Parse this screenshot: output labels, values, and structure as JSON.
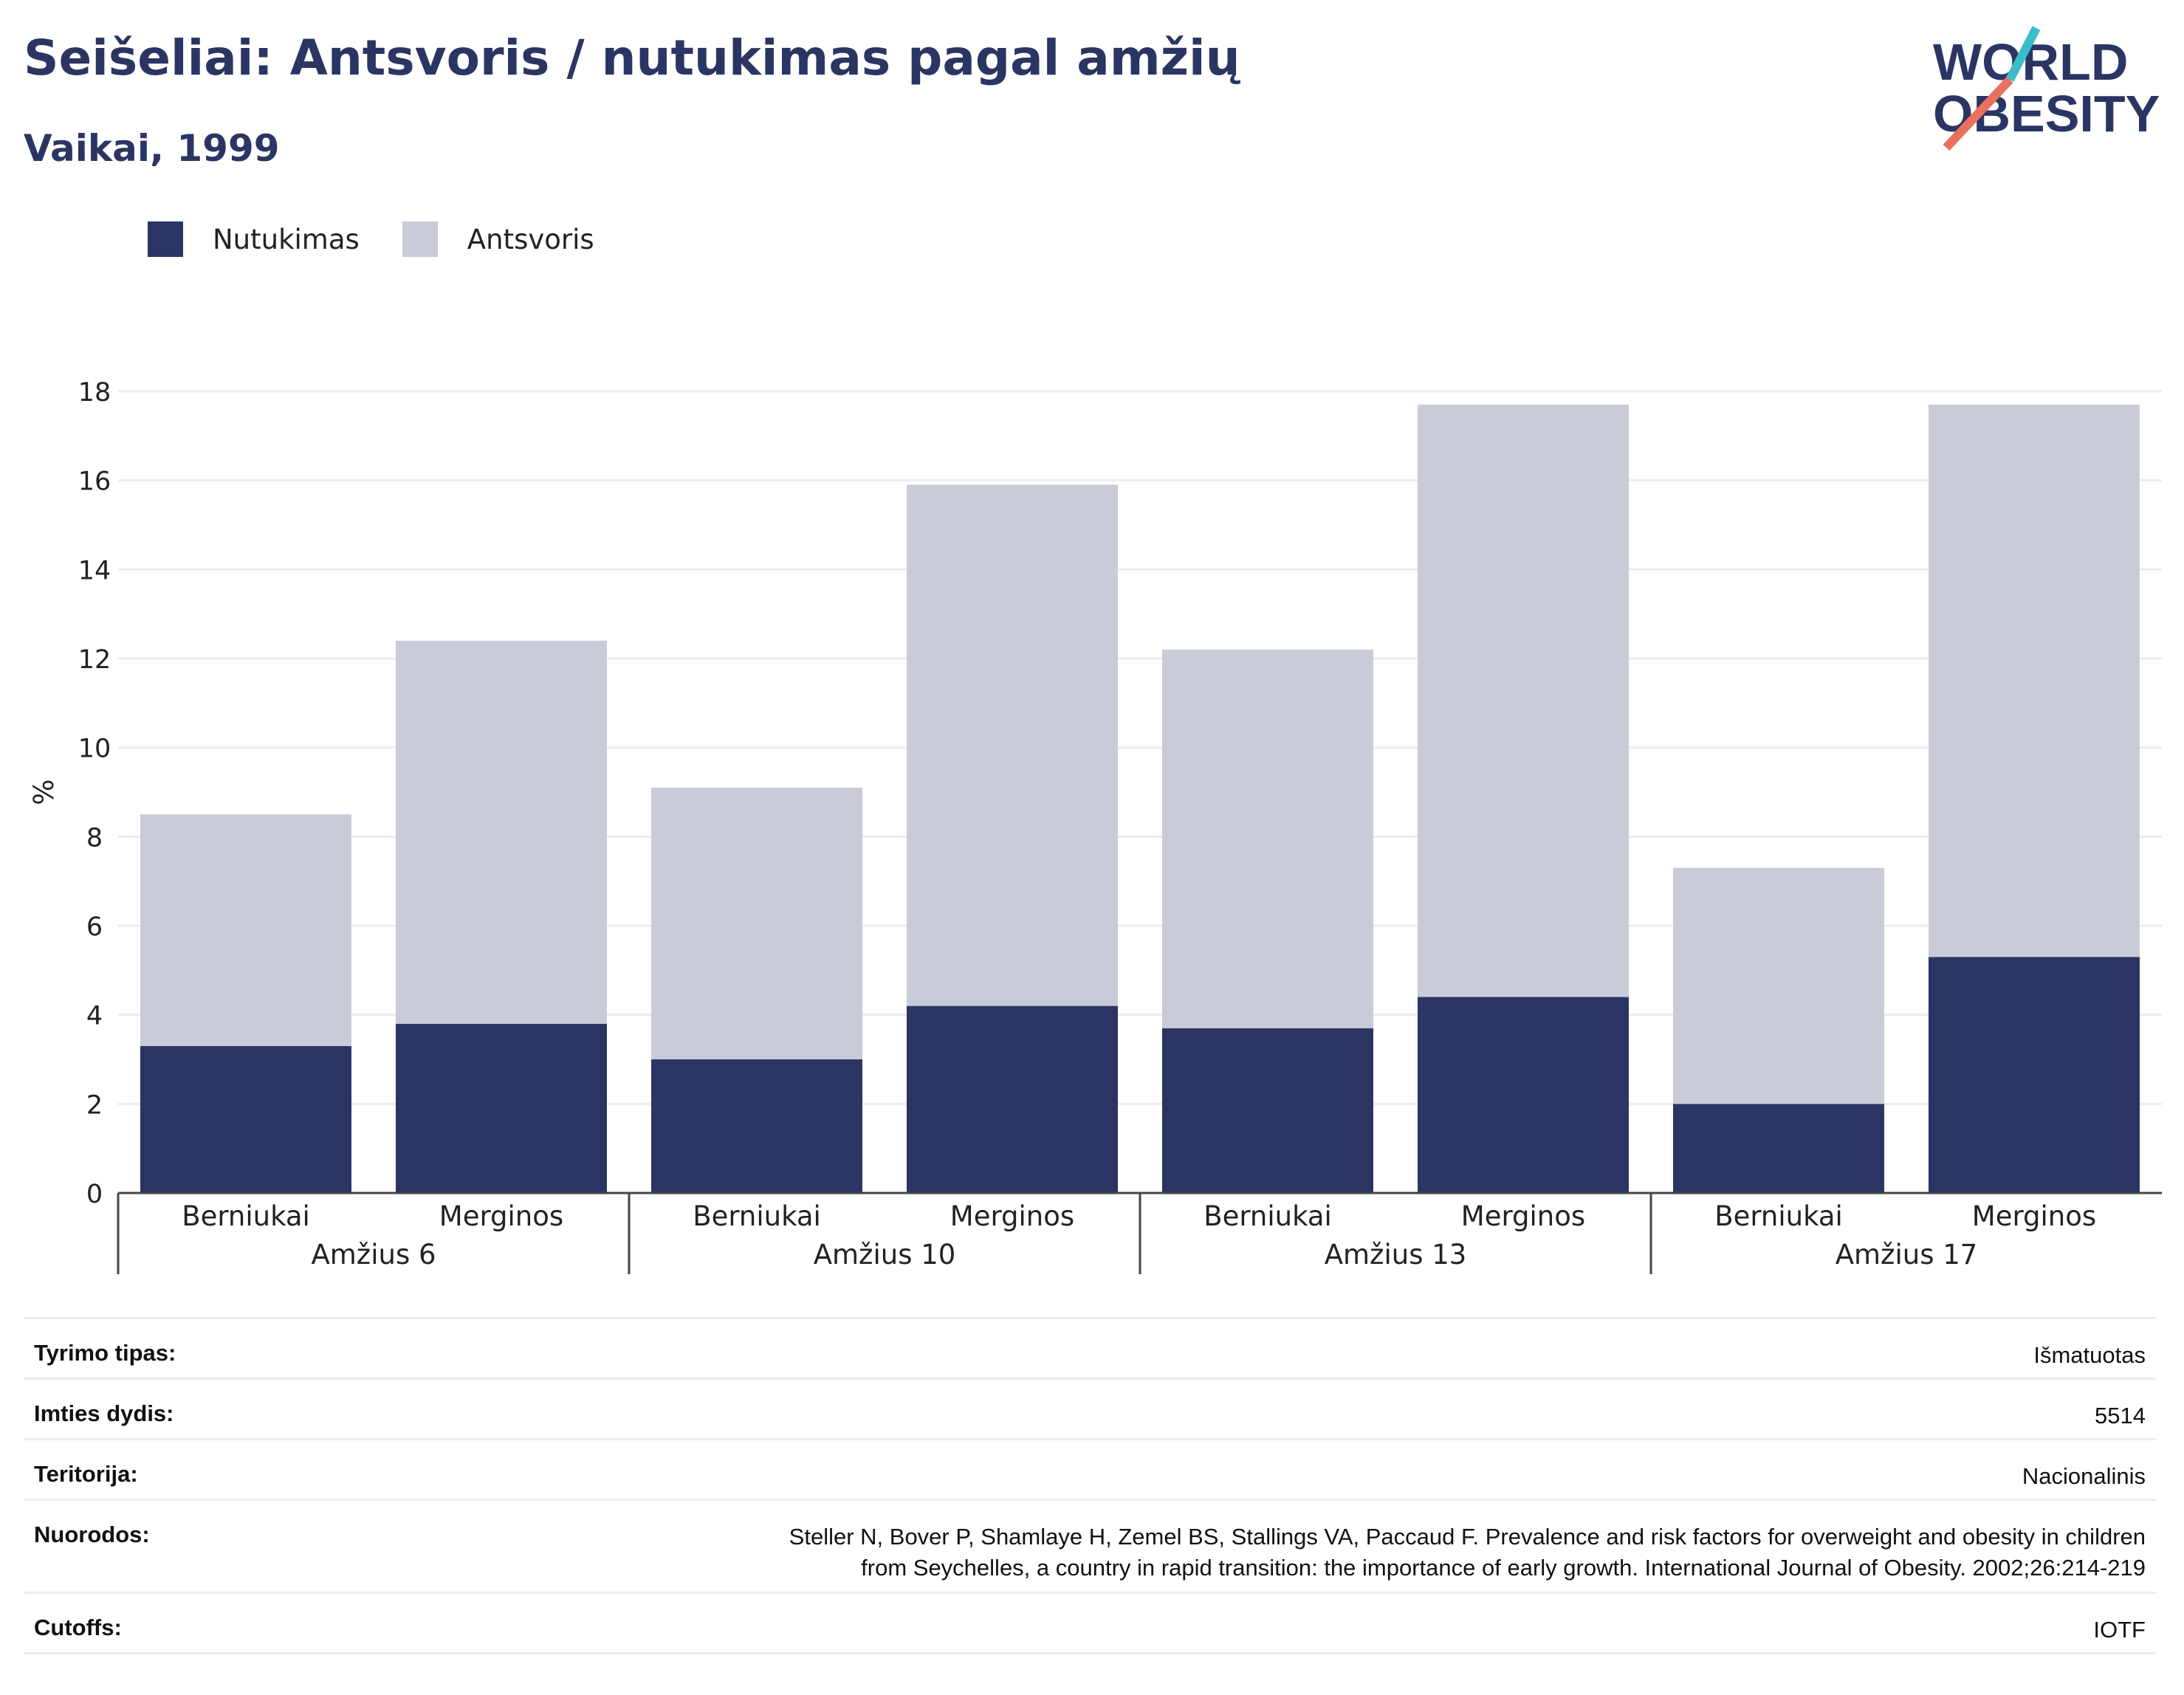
{
  "header": {
    "title": "Seišeliai: Antsvoris / nutukimas pagal amžių",
    "subtitle": "Vaikai, 1999"
  },
  "logo": {
    "line1": "WORLD",
    "line2": "OBESITY",
    "text_color": "#2b3563",
    "slash_colors": [
      "#e8705c",
      "#3bbcc8"
    ]
  },
  "legend": [
    {
      "name": "Nutukimas",
      "color": "#2b3563"
    },
    {
      "name": "Antsvoris",
      "color": "#cacbd8"
    }
  ],
  "chart_data": {
    "type": "bar",
    "stacked": true,
    "ylabel": "%",
    "ylim": [
      0,
      18
    ],
    "yticks": [
      0,
      2,
      4,
      6,
      8,
      10,
      12,
      14,
      16,
      18
    ],
    "grid": true,
    "legend_position": "top-left",
    "groups": [
      {
        "label": "Amžius 6",
        "categories": [
          "Berniukai",
          "Merginos"
        ]
      },
      {
        "label": "Amžius 10",
        "categories": [
          "Berniukai",
          "Merginos"
        ]
      },
      {
        "label": "Amžius 13",
        "categories": [
          "Berniukai",
          "Merginos"
        ]
      },
      {
        "label": "Amžius 17",
        "categories": [
          "Berniukai",
          "Merginos"
        ]
      }
    ],
    "series": [
      {
        "name": "Nutukimas",
        "color": "#2b3563",
        "values": [
          3.3,
          3.8,
          3.0,
          4.2,
          3.7,
          4.4,
          2.0,
          5.3
        ]
      },
      {
        "name": "Antsvoris",
        "color": "#cacbd8",
        "values": [
          5.2,
          8.6,
          6.1,
          11.7,
          8.5,
          13.3,
          5.3,
          12.4
        ]
      }
    ]
  },
  "info": [
    {
      "label": "Tyrimo tipas:",
      "value": [
        "Išmatuotas"
      ]
    },
    {
      "label": "Imties dydis:",
      "value": [
        "5514"
      ]
    },
    {
      "label": "Teritorija:",
      "value": [
        "Nacionalinis"
      ]
    },
    {
      "label": "Nuorodos:",
      "value": [
        "Steller N, Bover P, Shamlaye H, Zemel BS, Stallings VA, Paccaud F. Prevalence and risk factors for overweight and obesity in children",
        "from Seychelles, a country in rapid transition: the importance of early growth. International Journal of Obesity. 2002;26:214-219"
      ]
    },
    {
      "label": "Cutoffs:",
      "value": [
        "IOTF"
      ]
    }
  ]
}
